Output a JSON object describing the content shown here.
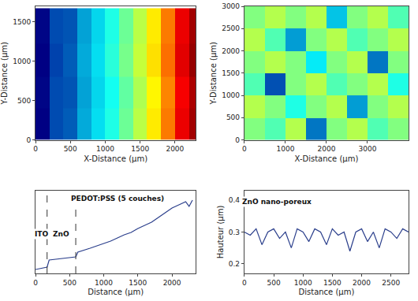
{
  "chart_data": [
    {
      "type": "heatmap",
      "x_label": "X-Distance (µm)",
      "y_label": "Y-Distance (µm)",
      "x": [
        100,
        300,
        500,
        700,
        900,
        1100,
        1300,
        1500,
        1700,
        1900,
        2100,
        2300
      ],
      "y": [
        200,
        600,
        1000,
        1450
      ],
      "z": [
        [
          0.0,
          0.13,
          0.15,
          0.24,
          0.3,
          0.36,
          0.43,
          0.5,
          0.58,
          0.68,
          0.8,
          0.87
        ],
        [
          0.01,
          0.13,
          0.14,
          0.23,
          0.29,
          0.35,
          0.42,
          0.49,
          0.57,
          0.67,
          0.79,
          0.86
        ],
        [
          0.0,
          0.12,
          0.15,
          0.24,
          0.3,
          0.37,
          0.44,
          0.51,
          0.59,
          0.69,
          0.81,
          0.88
        ],
        [
          0.01,
          0.13,
          0.14,
          0.23,
          0.29,
          0.36,
          0.43,
          0.5,
          0.58,
          0.68,
          0.8,
          0.87
        ]
      ],
      "zlim": [
        0,
        0.9
      ],
      "xlim": [
        0,
        2300
      ],
      "xticks": [
        0,
        500,
        1000,
        1500,
        2000
      ],
      "ylim": [
        0,
        1700
      ],
      "yticks": [
        0,
        500,
        1000,
        1500
      ]
    },
    {
      "type": "heatmap",
      "x_label": "X-Distance (µm)",
      "y_label": "Y-Distance (µm)",
      "x": [
        250,
        750,
        1250,
        1750,
        2250,
        2750,
        3250,
        3750
      ],
      "y": [
        250,
        750,
        1250,
        1750,
        2250,
        2750
      ],
      "z": [
        [
          0.3,
          0.29,
          0.31,
          0.24,
          0.3,
          0.31,
          0.29,
          0.3
        ],
        [
          0.31,
          0.3,
          0.28,
          0.3,
          0.31,
          0.25,
          0.3,
          0.31
        ],
        [
          0.29,
          0.23,
          0.3,
          0.31,
          0.29,
          0.3,
          0.31,
          0.28
        ],
        [
          0.3,
          0.31,
          0.3,
          0.27,
          0.3,
          0.31,
          0.24,
          0.3
        ],
        [
          0.31,
          0.29,
          0.25,
          0.3,
          0.31,
          0.29,
          0.3,
          0.31
        ],
        [
          0.3,
          0.31,
          0.3,
          0.31,
          0.26,
          0.3,
          0.31,
          0.29
        ]
      ],
      "zlim": [
        0.2,
        0.4
      ],
      "xlim": [
        0,
        4000
      ],
      "xticks": [
        0,
        1000,
        2000,
        3000
      ],
      "ylim": [
        0,
        3000
      ],
      "yticks": [
        0,
        500,
        1000,
        1500,
        2000,
        2500,
        3000
      ]
    },
    {
      "type": "line",
      "x_label": "Distance (µm)",
      "x": [
        0,
        100,
        170,
        200,
        300,
        400,
        500,
        590,
        620,
        700,
        800,
        900,
        1000,
        1100,
        1200,
        1300,
        1400,
        1500,
        1600,
        1700,
        1800,
        1900,
        2000,
        2100,
        2200,
        2250,
        2300
      ],
      "values": [
        0.0,
        0.02,
        0.03,
        0.12,
        0.13,
        0.14,
        0.15,
        0.16,
        0.22,
        0.24,
        0.27,
        0.3,
        0.33,
        0.36,
        0.4,
        0.44,
        0.47,
        0.52,
        0.56,
        0.6,
        0.66,
        0.72,
        0.78,
        0.82,
        0.86,
        0.8,
        0.88
      ],
      "color": "#2b3f8c",
      "xlim": [
        0,
        2350
      ],
      "xticks": [
        0,
        500,
        1000,
        1500,
        2000
      ],
      "ylim": [
        -0.05,
        1.0
      ],
      "tick_labels": "x",
      "vlines": [
        170,
        590
      ],
      "annotations": [
        {
          "text": "ITO",
          "x": 85,
          "y": 0.45
        },
        {
          "text": "ZnO",
          "x": 380,
          "y": 0.45
        },
        {
          "text": "PEDOT:PSS (5 couches)",
          "x": 1200,
          "y": 0.9
        }
      ]
    },
    {
      "type": "line",
      "x_label": "Distance (µm)",
      "y_label": "Hauteur (µm)",
      "x": [
        0,
        100,
        200,
        300,
        400,
        500,
        600,
        700,
        800,
        900,
        1000,
        1100,
        1200,
        1300,
        1400,
        1500,
        1600,
        1700,
        1800,
        1900,
        2000,
        2100,
        2200,
        2300,
        2400,
        2500,
        2600,
        2700,
        2800
      ],
      "values": [
        0.3,
        0.29,
        0.31,
        0.26,
        0.3,
        0.31,
        0.28,
        0.3,
        0.25,
        0.31,
        0.3,
        0.27,
        0.31,
        0.3,
        0.26,
        0.31,
        0.29,
        0.3,
        0.24,
        0.3,
        0.31,
        0.27,
        0.3,
        0.25,
        0.31,
        0.3,
        0.28,
        0.31,
        0.3
      ],
      "color": "#2b3f8c",
      "xlim": [
        0,
        2800
      ],
      "xticks": [
        0,
        500,
        1000,
        1500,
        2000,
        2500
      ],
      "ylim": [
        0.17,
        0.43
      ],
      "yticks": [
        0.2,
        0.3,
        0.4
      ],
      "annotations": [
        {
          "text": "ZnO nano-poreux",
          "x": 550,
          "y": 0.395
        }
      ]
    }
  ]
}
